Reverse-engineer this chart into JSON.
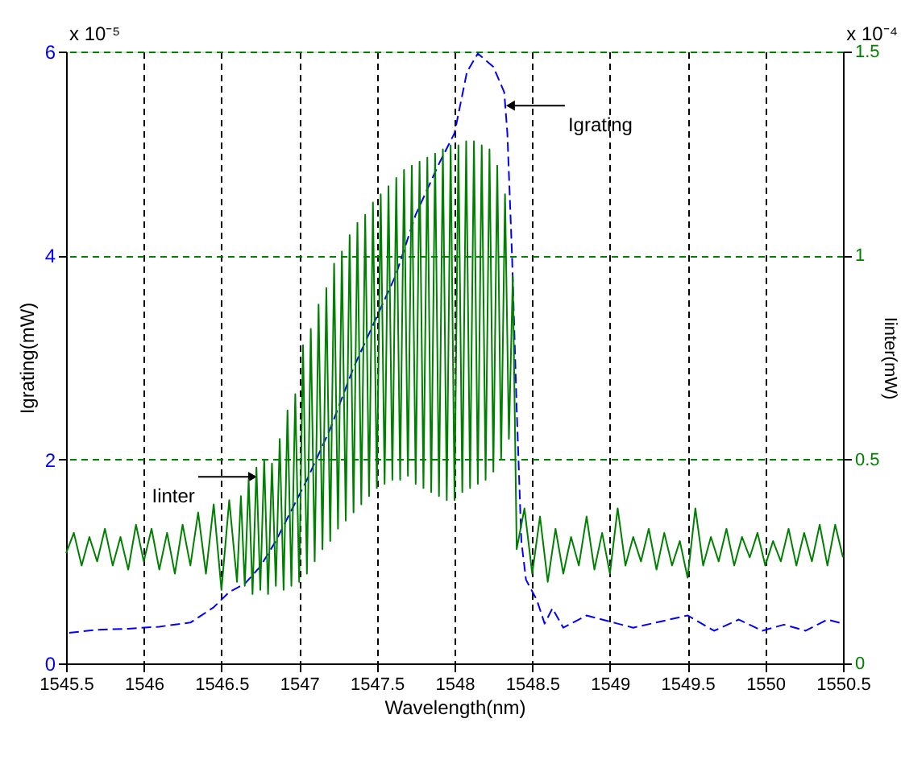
{
  "chart_data": {
    "type": "line",
    "xlabel": "Wavelength(nm)",
    "ylabel": "Igrating(mW)",
    "y2label": "Iinter(mW)",
    "xlim": [
      1545.5,
      1550.5
    ],
    "xticks": [
      1545.5,
      1546,
      1546.5,
      1547,
      1547.5,
      1548,
      1548.5,
      1549,
      1549.5,
      1550,
      1550.5
    ],
    "ylim": [
      0,
      6
    ],
    "yticks": [
      0,
      2,
      4,
      6
    ],
    "y2lim": [
      0,
      1.5
    ],
    "y2ticks": [
      0,
      0.5,
      1,
      1.5
    ],
    "grid": true,
    "marker": "none",
    "annotations": [
      {
        "text": "Igrating",
        "x": 1548.36,
        "y": 5.47
      },
      {
        "text": "Iinter",
        "x": 1546.7,
        "y": 1.83
      },
      "x 10⁻⁵",
      "x 10⁻⁴"
    ],
    "series": [
      {
        "color": "#0000ff",
        "line_style": "dashed",
        "x": [
          1545.52,
          1545.7,
          1545.9,
          1546.1,
          1546.3,
          1546.45,
          1546.55,
          1546.65,
          1546.75,
          1546.85,
          1546.95,
          1547.05,
          1547.2,
          1547.35,
          1547.5,
          1547.62,
          1547.75,
          1547.9,
          1548.0,
          1548.08,
          1548.15,
          1548.25,
          1548.32,
          1548.34,
          1548.37,
          1548.4,
          1548.43,
          1548.46,
          1548.53,
          1548.58,
          1548.63,
          1548.7,
          1548.85,
          1549.05,
          1549.15,
          1549.5,
          1549.67,
          1549.83,
          1549.98,
          1550.12,
          1550.26,
          1550.4,
          1550.5
        ],
        "values": [
          0.3,
          0.33,
          0.34,
          0.36,
          0.4,
          0.55,
          0.7,
          0.78,
          0.95,
          1.2,
          1.5,
          1.8,
          2.3,
          2.9,
          3.4,
          3.8,
          4.4,
          4.9,
          5.2,
          5.8,
          5.98,
          5.85,
          5.6,
          5.2,
          4.0,
          2.5,
          1.2,
          0.82,
          0.62,
          0.39,
          0.54,
          0.35,
          0.47,
          0.39,
          0.35,
          0.47,
          0.32,
          0.43,
          0.32,
          0.38,
          0.32,
          0.43,
          0.39
        ]
      },
      {
        "color": "#008000",
        "line_style": "solid",
        "axis": "y2",
        "x": [
          1545.5,
          1545.55,
          1545.6,
          1545.65,
          1545.7,
          1545.75,
          1545.8,
          1545.85,
          1545.9,
          1545.95,
          1546.0,
          1546.05,
          1546.1,
          1546.15,
          1546.2,
          1546.25,
          1546.3,
          1546.35,
          1546.4,
          1546.45,
          1546.5,
          1546.55,
          1546.6,
          1546.625,
          1546.65,
          1546.675,
          1546.7,
          1546.725,
          1546.75,
          1546.775,
          1546.8,
          1546.825,
          1546.85,
          1546.875,
          1546.9,
          1546.925,
          1546.95,
          1546.975,
          1547.0,
          1547.025,
          1547.05,
          1547.075,
          1547.1,
          1547.125,
          1547.15,
          1547.175,
          1547.2,
          1547.225,
          1547.25,
          1547.275,
          1547.3,
          1547.325,
          1547.35,
          1547.375,
          1547.4,
          1547.425,
          1547.45,
          1547.475,
          1547.5,
          1547.525,
          1547.55,
          1547.575,
          1547.6,
          1547.625,
          1547.65,
          1547.675,
          1547.7,
          1547.725,
          1547.75,
          1547.775,
          1547.8,
          1547.825,
          1547.85,
          1547.875,
          1547.9,
          1547.925,
          1547.95,
          1547.975,
          1548.0,
          1548.025,
          1548.05,
          1548.075,
          1548.1,
          1548.125,
          1548.15,
          1548.175,
          1548.2,
          1548.225,
          1548.25,
          1548.275,
          1548.3,
          1548.325,
          1548.35,
          1548.375,
          1548.4,
          1548.45,
          1548.5,
          1548.55,
          1548.6,
          1548.65,
          1548.7,
          1548.75,
          1548.8,
          1548.85,
          1548.9,
          1548.95,
          1549.0,
          1549.05,
          1549.1,
          1549.15,
          1549.2,
          1549.25,
          1549.3,
          1549.35,
          1549.4,
          1549.45,
          1549.5,
          1549.55,
          1549.6,
          1549.65,
          1549.7,
          1549.75,
          1549.8,
          1549.85,
          1549.9,
          1549.95,
          1550.0,
          1550.05,
          1550.1,
          1550.15,
          1550.2,
          1550.25,
          1550.3,
          1550.35,
          1550.4,
          1550.45,
          1550.5
        ],
        "values": [
          0.27,
          0.32,
          0.24,
          0.31,
          0.25,
          0.33,
          0.24,
          0.31,
          0.23,
          0.34,
          0.25,
          0.33,
          0.23,
          0.32,
          0.22,
          0.34,
          0.24,
          0.37,
          0.22,
          0.39,
          0.18,
          0.4,
          0.2,
          0.41,
          0.19,
          0.45,
          0.17,
          0.48,
          0.18,
          0.5,
          0.17,
          0.49,
          0.19,
          0.55,
          0.18,
          0.62,
          0.19,
          0.66,
          0.2,
          0.78,
          0.22,
          0.82,
          0.25,
          0.88,
          0.28,
          0.92,
          0.3,
          0.98,
          0.33,
          1.01,
          0.35,
          1.05,
          0.37,
          1.08,
          0.39,
          1.1,
          0.41,
          1.13,
          0.43,
          1.15,
          0.44,
          1.17,
          0.45,
          1.19,
          0.45,
          1.21,
          0.46,
          1.22,
          0.44,
          1.23,
          0.43,
          1.24,
          0.42,
          1.25,
          0.41,
          1.26,
          0.4,
          1.27,
          0.4,
          1.27,
          0.42,
          1.28,
          0.43,
          1.28,
          0.44,
          1.27,
          0.45,
          1.26,
          0.47,
          1.22,
          0.5,
          1.15,
          0.55,
          0.95,
          0.28,
          0.38,
          0.22,
          0.36,
          0.2,
          0.33,
          0.22,
          0.31,
          0.24,
          0.36,
          0.23,
          0.32,
          0.22,
          0.38,
          0.24,
          0.31,
          0.25,
          0.33,
          0.23,
          0.32,
          0.24,
          0.3,
          0.21,
          0.38,
          0.24,
          0.31,
          0.25,
          0.33,
          0.24,
          0.31,
          0.26,
          0.32,
          0.24,
          0.3,
          0.25,
          0.33,
          0.24,
          0.32,
          0.25,
          0.34,
          0.24,
          0.34,
          0.26
        ]
      }
    ]
  }
}
